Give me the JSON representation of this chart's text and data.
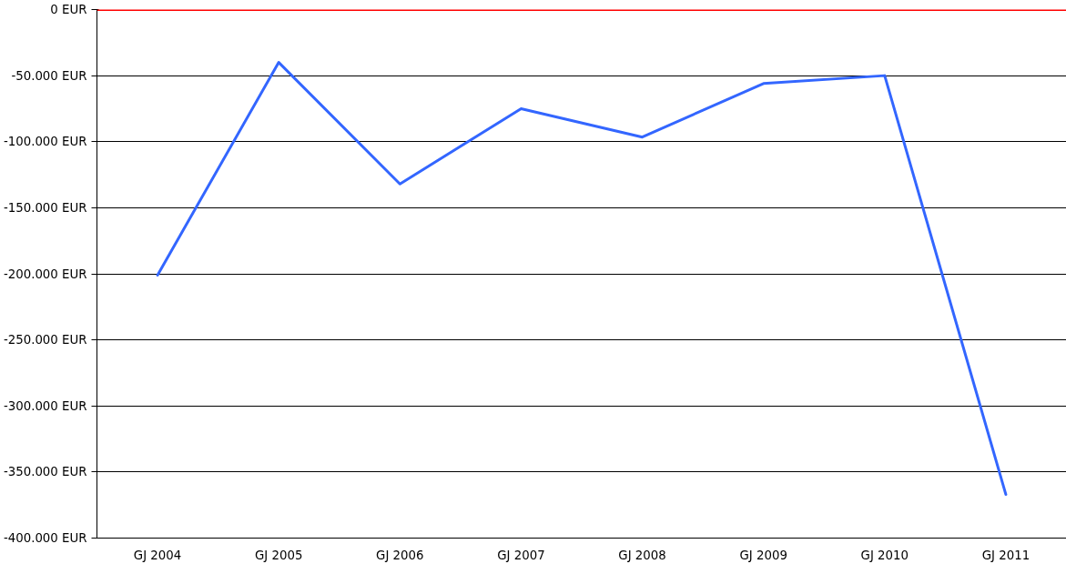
{
  "chart_data": {
    "type": "line",
    "categories": [
      "GJ 2004",
      "GJ 2005",
      "GJ 2006",
      "GJ 2007",
      "GJ 2008",
      "GJ 2009",
      "GJ 2010",
      "GJ 2011"
    ],
    "series": [
      {
        "color": "#3366ff",
        "values": [
          -201000,
          -40000,
          -132000,
          -75000,
          -96500,
          -56000,
          -50000,
          -367000
        ]
      }
    ],
    "ylim": [
      -400000,
      0
    ],
    "yticks": [
      {
        "value": -400000,
        "label": "-400.000 EUR"
      },
      {
        "value": -350000,
        "label": "-350.000 EUR"
      },
      {
        "value": -300000,
        "label": "-300.000 EUR"
      },
      {
        "value": -250000,
        "label": "-250.000 EUR"
      },
      {
        "value": -200000,
        "label": "-200.000 EUR"
      },
      {
        "value": -150000,
        "label": "-150.000 EUR"
      },
      {
        "value": -100000,
        "label": "-100.000 EUR"
      },
      {
        "value": -50000,
        "label": "-50.000 EUR"
      },
      {
        "value": 0,
        "label": "0 EUR"
      }
    ],
    "ref_lines": [
      {
        "axis": "y",
        "value": 0,
        "color": "#ff0000"
      }
    ],
    "grid": "y",
    "marker": "none",
    "line_style": "solid"
  }
}
